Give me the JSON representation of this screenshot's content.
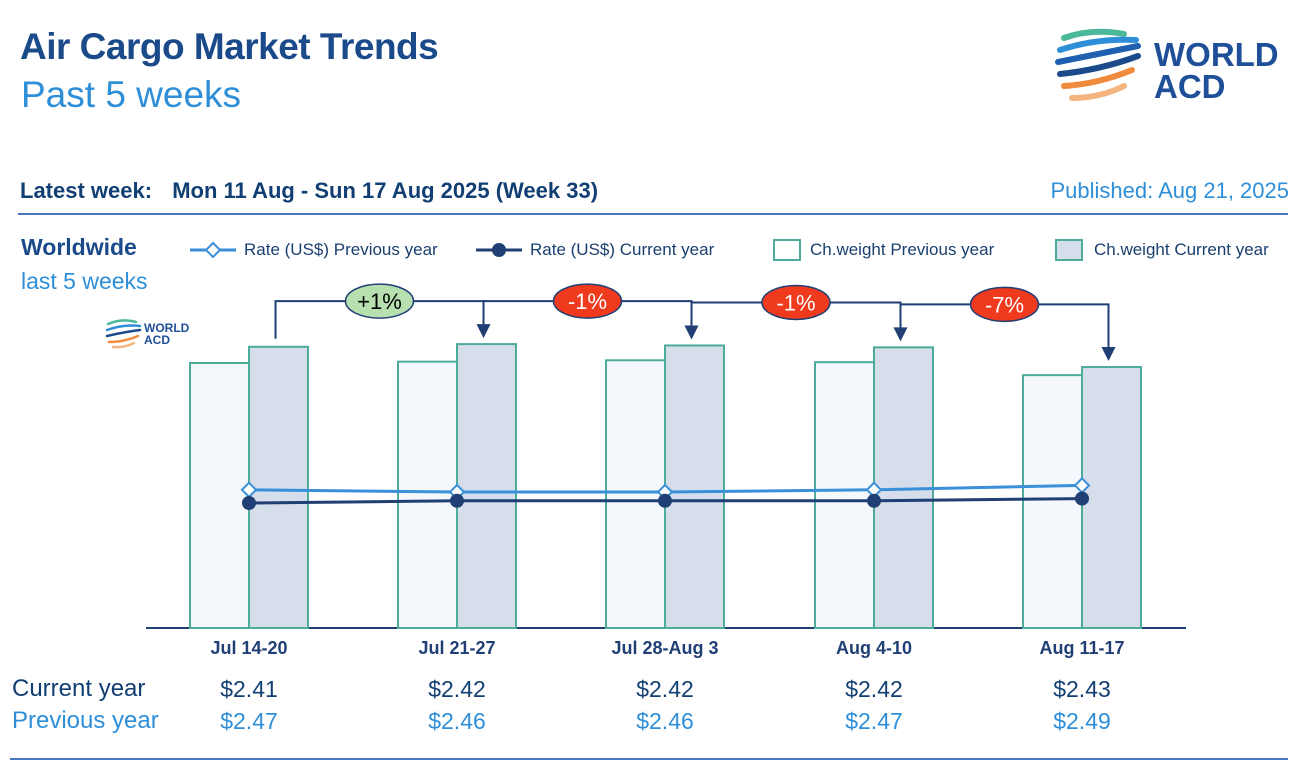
{
  "header": {
    "title": "Air Cargo Market Trends",
    "subtitle": "Past 5 weeks",
    "logo_text_line1": "WORLD",
    "logo_text_line2": "ACD"
  },
  "latest_week": {
    "label": "Latest week:",
    "value": "Mon 11 Aug - Sun 17 Aug 2025 (Week 33)"
  },
  "published": "Published: Aug 21, 2025",
  "region": {
    "name": "Worldwide",
    "period": "last 5 weeks"
  },
  "legend": [
    {
      "label": "Rate (US$) Previous year",
      "kind": "line-diamond",
      "color": "#3a8fd9"
    },
    {
      "label": "Rate (US$) Current year",
      "kind": "line-dot",
      "color": "#1f3f75"
    },
    {
      "label": "Ch.weight Previous year",
      "kind": "bar-outline",
      "color": "#4dab9a"
    },
    {
      "label": "Ch.weight Current year",
      "kind": "bar-filled",
      "color": "#4dab9a"
    }
  ],
  "table": {
    "current_label": "Current year",
    "previous_label": "Previous year"
  },
  "colors": {
    "dark_blue": "#1f3f75",
    "light_blue": "#3a8fd9",
    "teal": "#4dab9a",
    "bar_prev_fill": "#f4f7fb",
    "bar_cur_fill": "#d5deea",
    "badge_up": "#b7dfb0",
    "badge_down": "#ef3a1e"
  },
  "chart_data": {
    "type": "bar",
    "categories": [
      "Jul 14-20",
      "Jul 21-27",
      "Jul 28-Aug 3",
      "Aug 4-10",
      "Aug 11-17"
    ],
    "chargeable_weight_relative": {
      "previous_year": [
        100,
        100.5,
        101,
        100.3,
        95.5
      ],
      "current_year": [
        106,
        107,
        106.5,
        105.8,
        98.5
      ]
    },
    "rate_current_year": [
      2.41,
      2.42,
      2.42,
      2.42,
      2.43
    ],
    "rate_previous_year": [
      2.47,
      2.46,
      2.46,
      2.47,
      2.49
    ],
    "rate_current_year_labels": [
      "$2.41",
      "$2.42",
      "$2.42",
      "$2.42",
      "$2.43"
    ],
    "rate_previous_year_labels": [
      "$2.47",
      "$2.46",
      "$2.46",
      "$2.47",
      "$2.49"
    ],
    "week_over_week_change": [
      "+1%",
      "-1%",
      "-1%",
      "-7%"
    ],
    "grid": false
  }
}
